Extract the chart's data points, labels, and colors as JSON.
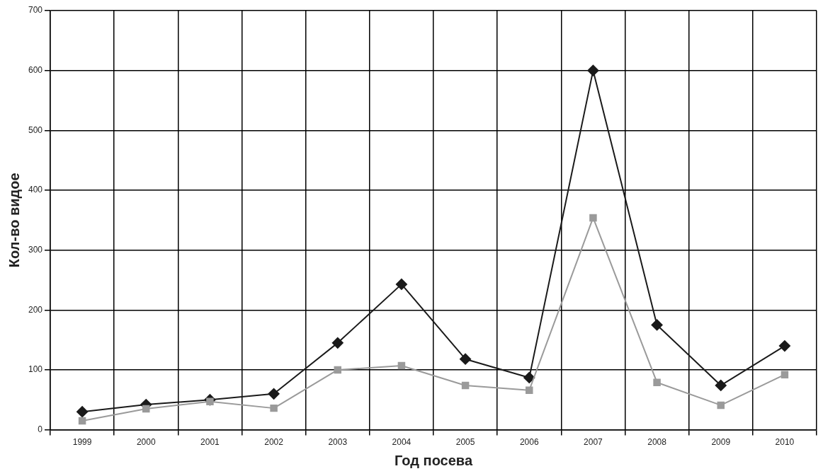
{
  "chart_data": {
    "type": "line",
    "xlabel": "Год посева",
    "ylabel": "Кол-во видое",
    "categories": [
      "1999",
      "2000",
      "2001",
      "2002",
      "2003",
      "2004",
      "2005",
      "2006",
      "2007",
      "2008",
      "2009",
      "2010"
    ],
    "series": [
      {
        "color": "#1a1a1a",
        "marker": "diamond",
        "values": [
          30,
          42,
          50,
          60,
          145,
          243,
          118,
          87,
          600,
          175,
          74,
          140
        ]
      },
      {
        "color": "#9a9a9a",
        "marker": "square",
        "values": [
          15,
          35,
          47,
          36,
          100,
          107,
          74,
          66,
          354,
          79,
          41,
          92
        ]
      }
    ],
    "ylim": [
      0,
      700
    ],
    "yticks": [
      0,
      100,
      200,
      300,
      400,
      500,
      600,
      700
    ],
    "grid": true,
    "legend": false
  }
}
